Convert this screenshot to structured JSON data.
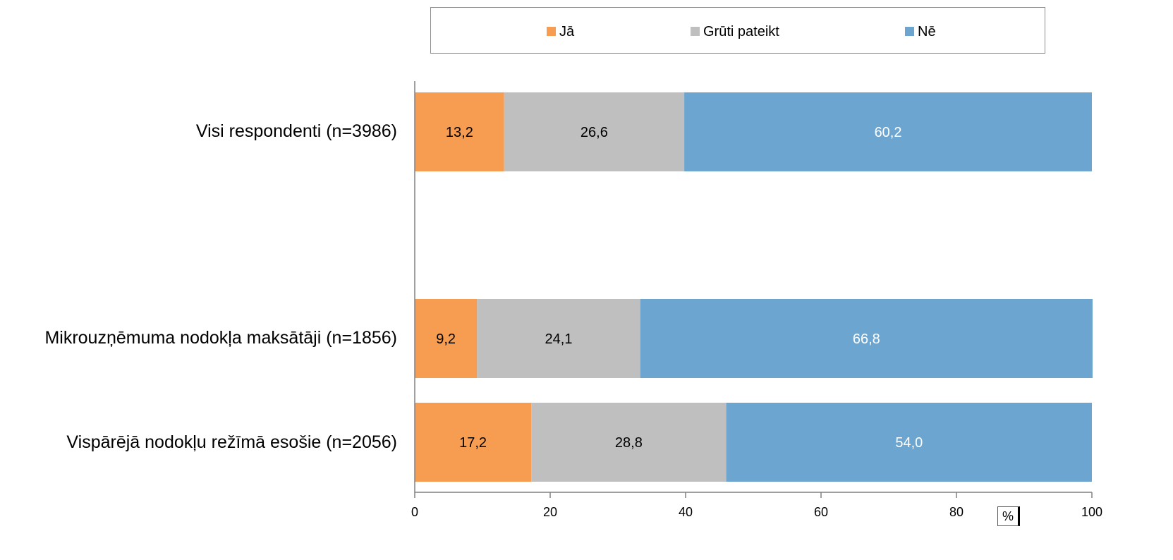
{
  "chart_data": {
    "type": "bar",
    "orientation": "horizontal",
    "stacked": true,
    "categories": [
      "Visi respondenti (n=3986)",
      "Mikrouzņēmuma nodokļa maksātāji (n=1856)",
      "Vispārējā nodokļu režīmā esošie (n=2056)"
    ],
    "series": [
      {
        "name": "Jā",
        "color": "#f79d52",
        "values": [
          13.2,
          9.2,
          17.2
        ],
        "labels": [
          "13,2",
          "9,2",
          "17,2"
        ],
        "label_color": "#000000"
      },
      {
        "name": "Grūti pateikt",
        "color": "#bfbfbf",
        "values": [
          26.6,
          24.1,
          28.8
        ],
        "labels": [
          "26,6",
          "24,1",
          "28,8"
        ],
        "label_color": "#000000"
      },
      {
        "name": "Nē",
        "color": "#6ca5cf",
        "values": [
          60.2,
          66.8,
          54.0
        ],
        "labels": [
          "60,2",
          "66,8",
          "54,0"
        ],
        "label_color": "#ffffff"
      }
    ],
    "xlim": [
      0,
      100
    ],
    "xticks": [
      0,
      20,
      40,
      60,
      80,
      100
    ],
    "unit": "%",
    "legend": "top",
    "grid": false
  }
}
